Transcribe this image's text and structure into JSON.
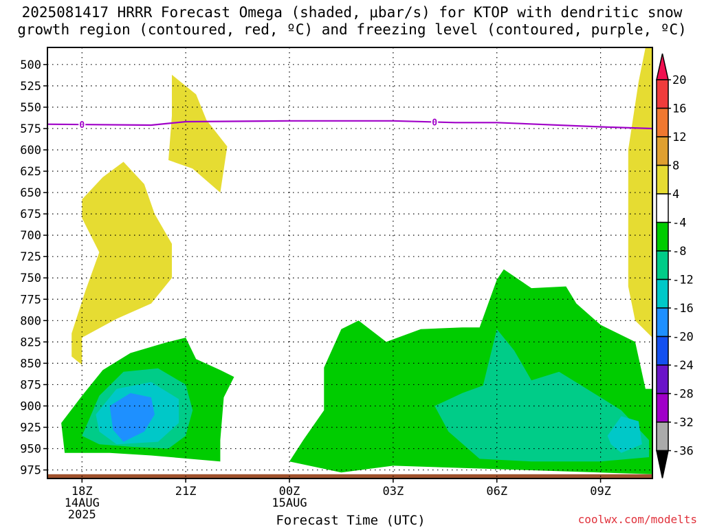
{
  "title": "2025081417 HRRR Forecast Omega (shaded, μbar/s) for KTOP with dendritic snow\ngrowth region (contoured, red, ºC) and freezing level (contoured, purple, ºC)",
  "credit": "coolwx.com/modelts",
  "chart_data": {
    "type": "time-height cross section",
    "title": "2025081417 HRRR Forecast Omega (shaded, μbar/s) for KTOP with dendritic snow growth region (contoured, red, ºC) and freezing level (contoured, purple, ºC)",
    "xlabel": "Forecast Time (UTC)",
    "ylabel": "",
    "y_axis": {
      "unit": "hPa",
      "reversed": true,
      "range": [
        480,
        985
      ],
      "ticks": [
        "500",
        "525",
        "550",
        "575",
        "600",
        "625",
        "650",
        "675",
        "700",
        "725",
        "750",
        "775",
        "800",
        "825",
        "850",
        "875",
        "900",
        "925",
        "950",
        "975"
      ]
    },
    "x_axis": {
      "range_hours_from_18Z": [
        -1.0,
        16.5
      ],
      "ticks": [
        {
          "label": "18Z",
          "sub": [
            "14AUG",
            "2025"
          ],
          "hour": 0
        },
        {
          "label": "21Z",
          "sub": [],
          "hour": 3
        },
        {
          "label": "00Z",
          "sub": [
            "15AUG"
          ],
          "hour": 6
        },
        {
          "label": "03Z",
          "sub": [],
          "hour": 9
        },
        {
          "label": "06Z",
          "sub": [],
          "hour": 12
        },
        {
          "label": "09Z",
          "sub": [],
          "hour": 15
        }
      ]
    },
    "grid": "dotted",
    "colorbar": {
      "labels": [
        "20",
        "16",
        "12",
        "8",
        "4",
        "-4",
        "-8",
        "-12",
        "-16",
        "-20",
        "-24",
        "-28",
        "-32",
        "-36"
      ],
      "colors": [
        "#f01050",
        "#f03c3c",
        "#f07830",
        "#e0a030",
        "#e6dc32",
        "#ffffff",
        "#00cc00",
        "#00cc88",
        "#00c8c8",
        "#1e90ff",
        "#1450f0",
        "#6a14c8",
        "#a000c8",
        "#aaaaaa",
        "#000000"
      ]
    },
    "freezing_level": {
      "contour_label": "0",
      "points": [
        [
          -1.0,
          570
        ],
        [
          2.0,
          571
        ],
        [
          3.0,
          567
        ],
        [
          6.0,
          566
        ],
        [
          9.0,
          566
        ],
        [
          10.8,
          568
        ],
        [
          12.0,
          568
        ],
        [
          15.0,
          573
        ],
        [
          16.5,
          575
        ]
      ]
    },
    "omega_regions": [
      {
        "range": "4 to 8",
        "points": [
          [
            2.6,
            512
          ],
          [
            3.3,
            535
          ],
          [
            3.6,
            565
          ],
          [
            4.2,
            596
          ],
          [
            4.0,
            650
          ],
          [
            3.2,
            622
          ],
          [
            2.5,
            612
          ],
          [
            2.6,
            560
          ]
        ]
      },
      {
        "range": "4 to 8",
        "points": [
          [
            0.0,
            658
          ],
          [
            0.6,
            632
          ],
          [
            1.2,
            614
          ],
          [
            1.8,
            640
          ],
          [
            2.1,
            675
          ],
          [
            2.6,
            710
          ],
          [
            2.6,
            750
          ],
          [
            2.0,
            780
          ],
          [
            1.0,
            798
          ],
          [
            0.0,
            820
          ],
          [
            0.0,
            852
          ],
          [
            -0.3,
            842
          ],
          [
            -0.3,
            815
          ],
          [
            0.1,
            765
          ],
          [
            0.5,
            720
          ],
          [
            0.0,
            680
          ]
        ]
      },
      {
        "range": "4 to 8",
        "points": [
          [
            16.5,
            480
          ],
          [
            16.5,
            820
          ],
          [
            16.0,
            800
          ],
          [
            15.8,
            760
          ],
          [
            15.8,
            600
          ],
          [
            16.1,
            520
          ],
          [
            16.3,
            480
          ]
        ]
      },
      {
        "range": "-4 to -8",
        "points": [
          [
            -0.6,
            920
          ],
          [
            0.0,
            888
          ],
          [
            0.6,
            858
          ],
          [
            1.4,
            838
          ],
          [
            2.4,
            826
          ],
          [
            3.0,
            820
          ],
          [
            3.3,
            845
          ],
          [
            4.0,
            858
          ],
          [
            4.4,
            866
          ],
          [
            4.1,
            890
          ],
          [
            4.0,
            940
          ],
          [
            4.0,
            965
          ],
          [
            2.0,
            958
          ],
          [
            0.8,
            955
          ],
          [
            -0.5,
            955
          ]
        ]
      },
      {
        "range": "-4 to -8",
        "points": [
          [
            6.0,
            965
          ],
          [
            6.4,
            940
          ],
          [
            7.0,
            905
          ],
          [
            7.0,
            855
          ],
          [
            7.5,
            810
          ],
          [
            8.0,
            800
          ],
          [
            8.8,
            825
          ],
          [
            9.8,
            810
          ],
          [
            11.0,
            808
          ],
          [
            11.5,
            808
          ],
          [
            12.0,
            752
          ],
          [
            12.2,
            740
          ],
          [
            13.0,
            762
          ],
          [
            14.0,
            760
          ],
          [
            14.3,
            780
          ],
          [
            15.0,
            805
          ],
          [
            16.0,
            825
          ],
          [
            16.3,
            880
          ],
          [
            16.5,
            880
          ],
          [
            16.5,
            980
          ],
          [
            9.0,
            970
          ],
          [
            7.5,
            978
          ]
        ]
      },
      {
        "range": "-8 to -12",
        "points": [
          [
            0.0,
            935
          ],
          [
            0.5,
            888
          ],
          [
            1.2,
            860
          ],
          [
            2.2,
            856
          ],
          [
            3.0,
            875
          ],
          [
            3.2,
            905
          ],
          [
            3.0,
            935
          ],
          [
            2.5,
            950
          ],
          [
            1.5,
            948
          ],
          [
            0.5,
            945
          ]
        ]
      },
      {
        "range": "-8 to -12",
        "points": [
          [
            10.2,
            900
          ],
          [
            11.0,
            885
          ],
          [
            11.6,
            876
          ],
          [
            12.0,
            810
          ],
          [
            12.5,
            835
          ],
          [
            13.0,
            870
          ],
          [
            13.8,
            860
          ],
          [
            14.6,
            880
          ],
          [
            15.6,
            905
          ],
          [
            16.4,
            940
          ],
          [
            16.4,
            960
          ],
          [
            15.0,
            965
          ],
          [
            13.0,
            965
          ],
          [
            11.5,
            962
          ],
          [
            10.6,
            930
          ]
        ]
      },
      {
        "range": "-12 to -16",
        "points": [
          [
            0.4,
            910
          ],
          [
            1.0,
            880
          ],
          [
            2.0,
            872
          ],
          [
            2.8,
            892
          ],
          [
            2.8,
            920
          ],
          [
            2.2,
            942
          ],
          [
            1.0,
            945
          ],
          [
            0.5,
            930
          ]
        ]
      },
      {
        "range": "-12 to -16",
        "points": [
          [
            15.2,
            935
          ],
          [
            15.6,
            912
          ],
          [
            16.1,
            918
          ],
          [
            16.2,
            945
          ],
          [
            15.6,
            955
          ],
          [
            15.3,
            945
          ]
        ]
      },
      {
        "range": "-16 to -20",
        "points": [
          [
            0.8,
            900
          ],
          [
            1.4,
            885
          ],
          [
            2.0,
            890
          ],
          [
            2.1,
            910
          ],
          [
            1.8,
            930
          ],
          [
            1.2,
            942
          ],
          [
            0.9,
            928
          ]
        ]
      }
    ],
    "ground": {
      "color": "#a0522d",
      "from_hPa": 980
    }
  }
}
